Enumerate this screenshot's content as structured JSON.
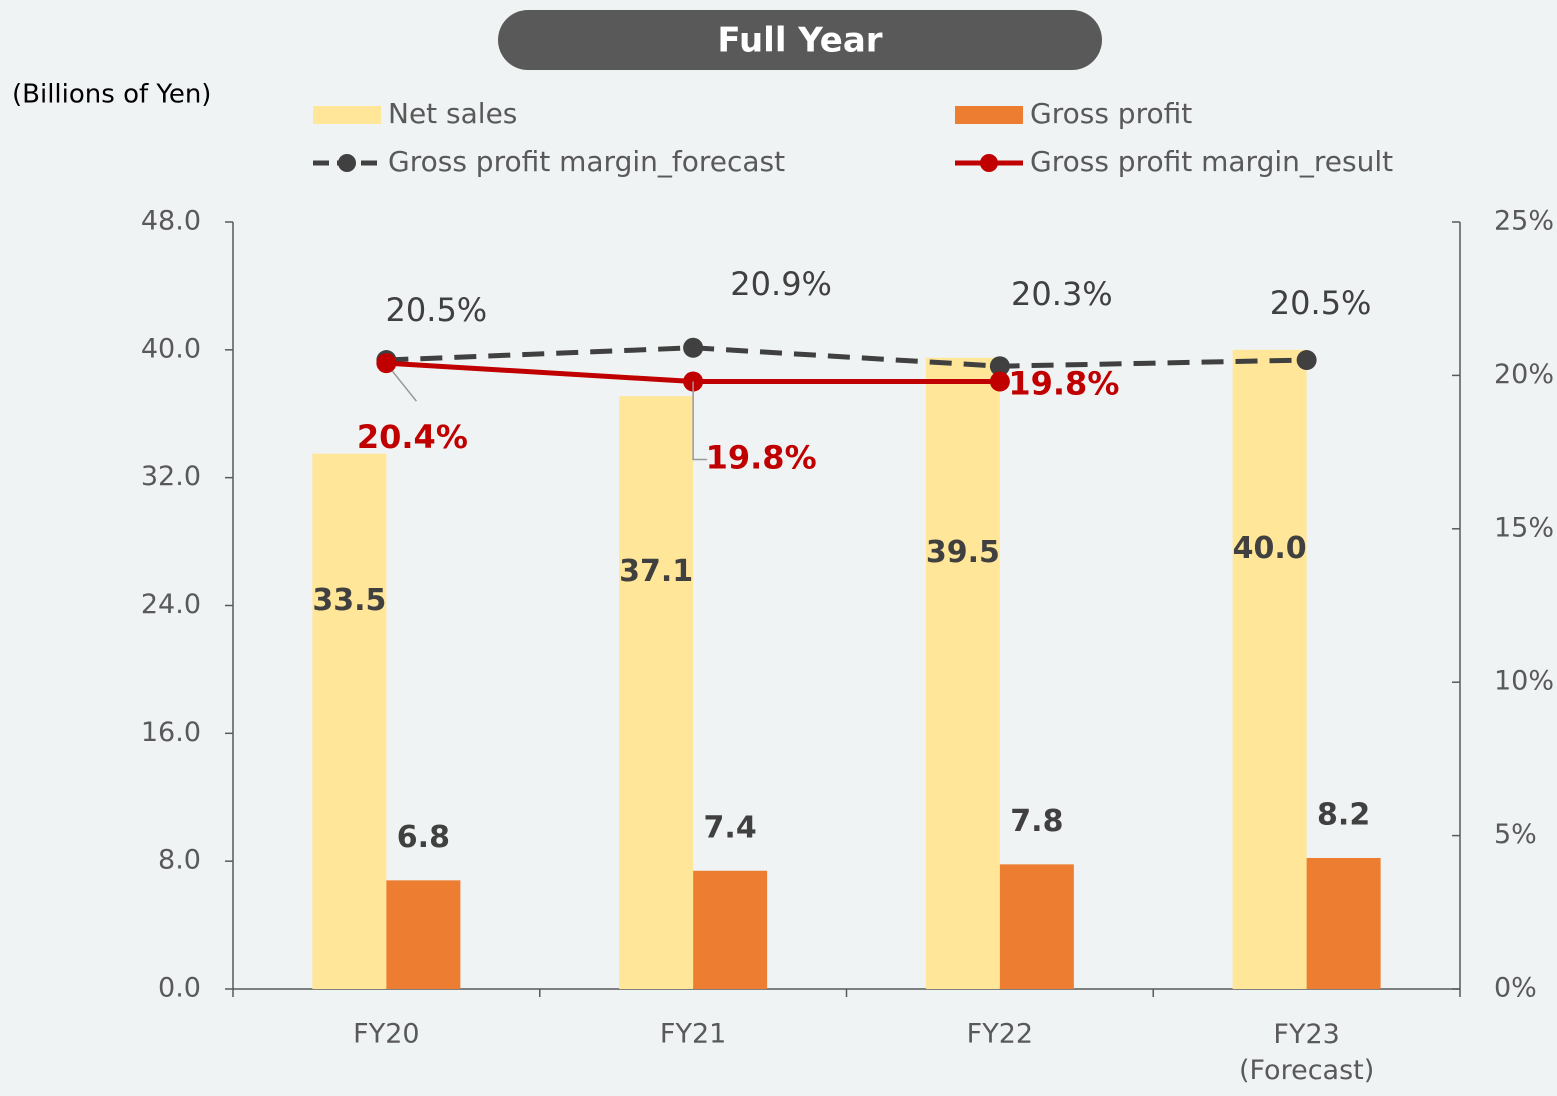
{
  "chart_data": {
    "type": "bar",
    "title": "Full Year",
    "y_axis_label": "(Billions of Yen)",
    "categories": [
      "FY20",
      "FY21",
      "FY22",
      "FY23\n(Forecast)"
    ],
    "ylim": [
      0,
      48
    ],
    "yticks": [
      {
        "value": 0,
        "label": "0.0"
      },
      {
        "value": 8,
        "label": "8.0"
      },
      {
        "value": 16,
        "label": "16.0"
      },
      {
        "value": 24,
        "label": "24.0"
      },
      {
        "value": 32,
        "label": "32.0"
      },
      {
        "value": 40,
        "label": "40.0"
      },
      {
        "value": 48,
        "label": "48.0"
      }
    ],
    "y2lim": [
      0,
      25
    ],
    "y2ticks": [
      {
        "value": 0,
        "label": "0%"
      },
      {
        "value": 5,
        "label": "5%"
      },
      {
        "value": 10,
        "label": "10%"
      },
      {
        "value": 15,
        "label": "15%"
      },
      {
        "value": 20,
        "label": "20%"
      },
      {
        "value": 25,
        "label": "25%"
      }
    ],
    "series": [
      {
        "name": "Net sales",
        "type": "bar",
        "color": "#ffe699",
        "values": [
          33.5,
          37.1,
          39.5,
          40.0
        ],
        "value_labels": [
          "33.5",
          "37.1",
          "39.5",
          "40.0"
        ]
      },
      {
        "name": "Gross profit",
        "type": "bar",
        "color": "#ed7d31",
        "values": [
          6.8,
          7.4,
          7.8,
          8.2
        ],
        "value_labels": [
          "6.8",
          "7.4",
          "7.8",
          "8.2"
        ]
      },
      {
        "name": "Gross profit margin_forecast",
        "type": "line",
        "dashed": true,
        "axis": "y2",
        "color": "#404040",
        "values": [
          20.5,
          20.9,
          20.3,
          20.5
        ],
        "value_labels": [
          "20.5%",
          "20.9%",
          "20.3%",
          "20.5%"
        ]
      },
      {
        "name": "Gross profit margin_result",
        "type": "line",
        "axis": "y2",
        "color": "#c00000",
        "values": [
          20.4,
          19.8,
          19.8,
          null
        ],
        "value_labels": [
          "20.4%",
          "19.8%",
          "19.8%",
          null
        ]
      }
    ]
  }
}
